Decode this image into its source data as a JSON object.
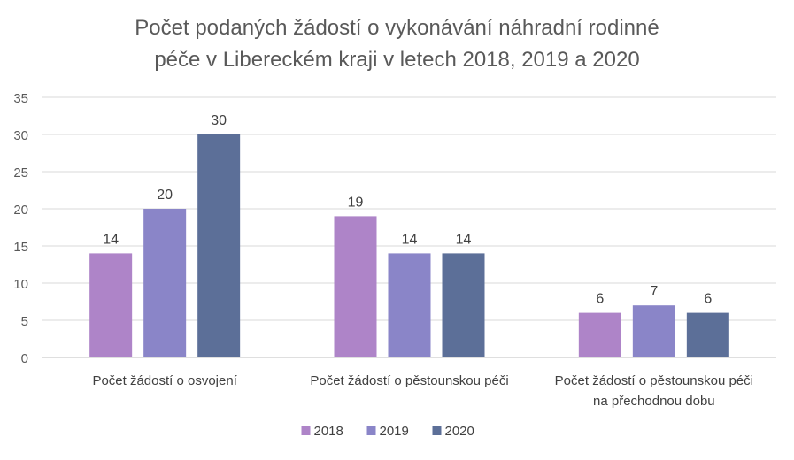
{
  "chart_data": {
    "type": "bar",
    "title_lines": [
      "Počet podaných žádostí o vykonávání náhradní rodinné",
      "péče v Libereckém kraji v letech 2018, 2019 a 2020"
    ],
    "categories": [
      [
        "Počet žádostí o osvojení"
      ],
      [
        "Počet žádostí o pěstounskou péči"
      ],
      [
        "Počet žádostí o pěstounskou péči",
        "na přechodnou dobu"
      ]
    ],
    "series": [
      {
        "name": "2018",
        "color": "#ae84c8",
        "values": [
          14,
          19,
          6
        ]
      },
      {
        "name": "2019",
        "color": "#8a85c8",
        "values": [
          20,
          14,
          7
        ]
      },
      {
        "name": "2020",
        "color": "#5c6f98",
        "values": [
          30,
          14,
          6
        ]
      }
    ],
    "ylim": [
      0,
      35
    ],
    "yticks": [
      0,
      5,
      10,
      15,
      20,
      25,
      30,
      35
    ],
    "grid": true,
    "data_labels": true,
    "legend_position": "bottom"
  }
}
